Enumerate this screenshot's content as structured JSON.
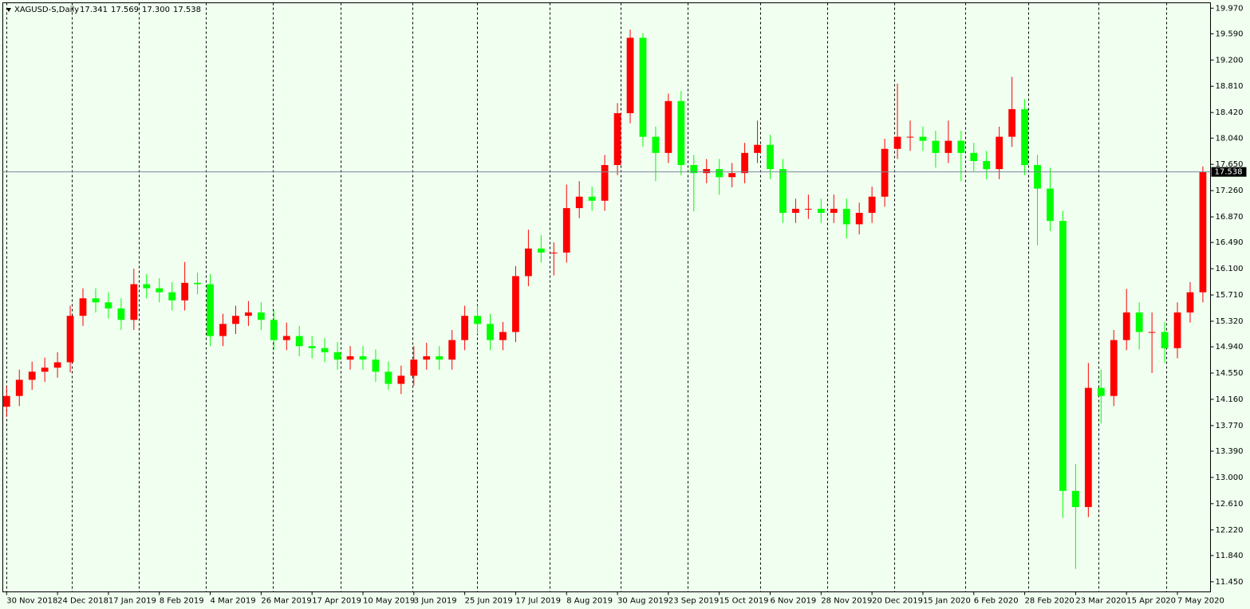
{
  "chart_data": {
    "type": "candlestick",
    "title": "XAGUSD-S,Daily",
    "header_ohlc": [
      17.341,
      17.569,
      {
        "value": 17.3,
        "label": "17.300"
      },
      17.538
    ],
    "last_price": 17.538,
    "bull_color": "#ff0000",
    "bear_color": "#00ff00",
    "price_line_color": "#778899",
    "xlim": [
      -0.3,
      94.6
    ],
    "xticks": [
      {
        "value": 0,
        "label": "30 Nov 2018"
      },
      {
        "value": 4,
        "label": "24 Dec 2018"
      },
      {
        "value": 8,
        "label": "17 Jan 2019"
      },
      {
        "value": 12,
        "label": "8 Feb 2019"
      },
      {
        "value": 16,
        "label": "4 Mar 2019"
      },
      {
        "value": 20,
        "label": "26 Mar 2019"
      },
      {
        "value": 24,
        "label": "17 Apr 2019"
      },
      {
        "value": 28,
        "label": "10 May 2019"
      },
      {
        "value": 32,
        "label": "3 Jun 2019"
      },
      {
        "value": 36,
        "label": "25 Jun 2019"
      },
      {
        "value": 40,
        "label": "17 Jul 2019"
      },
      {
        "value": 44,
        "label": "8 Aug 2019"
      },
      {
        "value": 48,
        "label": "30 Aug 2019"
      },
      {
        "value": 52,
        "label": "23 Sep 2019"
      },
      {
        "value": 56,
        "label": "15 Oct 2019"
      },
      {
        "value": 60,
        "label": "6 Nov 2019"
      },
      {
        "value": 64,
        "label": "28 Nov 2019"
      },
      {
        "value": 68,
        "label": "20 Dec 2019"
      },
      {
        "value": 72,
        "label": "15 Jan 2020"
      },
      {
        "value": 76,
        "label": "6 Feb 2020"
      },
      {
        "value": 80,
        "label": "28 Feb 2020"
      },
      {
        "value": 84,
        "label": "23 Mar 2020"
      },
      {
        "value": 88,
        "label": "15 Apr 2020"
      },
      {
        "value": 92,
        "label": "7 May 2020"
      }
    ],
    "ylim": [
      11.3,
      20.05
    ],
    "yticks": [
      {
        "value": 19.97,
        "label": "19.970"
      },
      {
        "value": 19.59,
        "label": "19.590"
      },
      {
        "value": 19.2,
        "label": "19.200"
      },
      {
        "value": 18.81,
        "label": "18.810"
      },
      {
        "value": 18.42,
        "label": "18.420"
      },
      {
        "value": 18.04,
        "label": "18.040"
      },
      {
        "value": 17.65,
        "label": "17.650"
      },
      {
        "value": 17.26,
        "label": "17.260"
      },
      {
        "value": 16.87,
        "label": "16.870"
      },
      {
        "value": 16.49,
        "label": "16.490"
      },
      {
        "value": 16.1,
        "label": "16.100"
      },
      {
        "value": 15.71,
        "label": "15.710"
      },
      {
        "value": 15.32,
        "label": "15.320"
      },
      {
        "value": 14.94,
        "label": "14.940"
      },
      {
        "value": 14.55,
        "label": "14.550"
      },
      {
        "value": 14.16,
        "label": "14.160"
      },
      {
        "value": 13.77,
        "label": "13.770"
      },
      {
        "value": 13.39,
        "label": "13.390"
      },
      {
        "value": 13.0,
        "label": "13.000"
      },
      {
        "value": 12.61,
        "label": "12.610"
      },
      {
        "value": 12.22,
        "label": "12.220"
      },
      {
        "value": 11.84,
        "label": "11.840"
      },
      {
        "value": 11.45,
        "label": "11.450"
      }
    ],
    "open": [
      14.05,
      14.21,
      14.45,
      14.57,
      14.63,
      14.71,
      15.4,
      15.66,
      15.6,
      15.51,
      15.34,
      15.87,
      15.81,
      15.75,
      15.63,
      15.89,
      15.87,
      15.1,
      15.28,
      15.4,
      15.45,
      15.34,
      15.04,
      15.1,
      14.95,
      14.92,
      14.86,
      14.75,
      14.8,
      14.75,
      14.57,
      14.39,
      14.51,
      14.75,
      14.8,
      14.75,
      15.04,
      15.4,
      15.28,
      15.04,
      15.16,
      15.99,
      16.4,
      16.34,
      16.34,
      17.0,
      17.17,
      17.11,
      17.64,
      18.41,
      19.53,
      18.06,
      17.82,
      18.59,
      17.64,
      17.52,
      17.58,
      17.46,
      17.52,
      17.82,
      17.94,
      17.58,
      16.93,
      16.99,
      16.99,
      16.93,
      16.99,
      16.76,
      16.93,
      17.17,
      17.88,
      18.06,
      18.06,
      18.0,
      17.82,
      18.0,
      17.82,
      17.7,
      17.58,
      18.06,
      18.47,
      17.64,
      17.29,
      16.81,
      12.8,
      12.56,
      14.33,
      14.21,
      15.04,
      15.45,
      15.16,
      15.16,
      14.92,
      15.45,
      15.75
    ],
    "high": [
      14.36,
      14.6,
      14.72,
      14.78,
      14.86,
      15.55,
      15.81,
      15.81,
      15.75,
      15.66,
      16.1,
      16.02,
      15.96,
      15.9,
      16.2,
      16.04,
      16.02,
      15.43,
      15.55,
      15.62,
      15.6,
      15.49,
      15.3,
      15.25,
      15.1,
      15.07,
      15.01,
      14.95,
      14.95,
      14.9,
      14.72,
      14.66,
      14.95,
      15.0,
      14.95,
      15.19,
      15.55,
      15.55,
      15.43,
      15.31,
      16.14,
      16.68,
      16.6,
      16.49,
      17.35,
      17.4,
      17.32,
      17.79,
      18.56,
      19.65,
      19.6,
      18.21,
      18.7,
      18.74,
      17.79,
      17.73,
      17.73,
      17.67,
      17.97,
      18.3,
      18.09,
      17.73,
      17.14,
      17.2,
      17.14,
      17.2,
      17.14,
      17.08,
      17.32,
      18.03,
      18.85,
      18.3,
      18.21,
      18.15,
      18.3,
      18.15,
      17.97,
      17.85,
      18.21,
      18.95,
      18.62,
      17.79,
      17.6,
      16.96,
      13.2,
      14.7,
      14.6,
      15.19,
      15.8,
      15.6,
      15.45,
      15.31,
      15.6,
      15.9,
      17.62
    ],
    "low": [
      13.9,
      14.06,
      14.3,
      14.42,
      14.48,
      14.56,
      15.25,
      15.45,
      15.36,
      15.19,
      15.19,
      15.66,
      15.6,
      15.48,
      15.48,
      15.72,
      14.95,
      14.95,
      15.13,
      15.25,
      15.19,
      14.89,
      14.89,
      14.8,
      14.77,
      14.71,
      14.6,
      14.6,
      14.6,
      14.42,
      14.3,
      14.24,
      14.36,
      14.6,
      14.6,
      14.6,
      14.89,
      15.13,
      14.89,
      14.89,
      15.01,
      15.84,
      16.19,
      16.0,
      16.19,
      16.85,
      16.96,
      16.96,
      17.49,
      18.26,
      17.91,
      17.4,
      17.67,
      17.49,
      16.95,
      17.37,
      17.2,
      17.31,
      17.37,
      17.67,
      17.43,
      16.78,
      16.78,
      16.84,
      16.78,
      16.78,
      16.55,
      16.61,
      16.78,
      17.02,
      17.73,
      17.85,
      17.85,
      17.6,
      17.67,
      17.4,
      17.55,
      17.43,
      17.43,
      17.91,
      17.49,
      16.45,
      16.66,
      12.4,
      11.64,
      12.41,
      13.8,
      14.06,
      14.89,
      14.9,
      14.55,
      14.7,
      14.77,
      15.3,
      15.6
    ],
    "close": [
      14.21,
      14.45,
      14.57,
      14.63,
      14.71,
      15.4,
      15.66,
      15.6,
      15.51,
      15.34,
      15.87,
      15.81,
      15.75,
      15.63,
      15.89,
      15.87,
      15.1,
      15.28,
      15.4,
      15.45,
      15.34,
      15.04,
      15.1,
      14.95,
      14.92,
      14.86,
      14.75,
      14.8,
      14.75,
      14.57,
      14.39,
      14.51,
      14.75,
      14.8,
      14.75,
      15.04,
      15.4,
      15.28,
      15.04,
      15.16,
      15.99,
      16.4,
      16.34,
      16.34,
      17.0,
      17.17,
      17.11,
      17.64,
      18.41,
      19.53,
      18.06,
      17.82,
      18.59,
      17.64,
      17.52,
      17.58,
      17.46,
      17.52,
      17.82,
      17.94,
      17.58,
      16.93,
      16.99,
      16.99,
      16.93,
      16.99,
      16.76,
      16.93,
      17.17,
      17.88,
      18.06,
      18.06,
      18.0,
      17.82,
      18.0,
      17.82,
      17.7,
      17.58,
      18.06,
      18.47,
      17.64,
      17.29,
      16.81,
      12.8,
      12.56,
      14.33,
      14.21,
      15.04,
      15.45,
      15.16,
      15.16,
      14.92,
      15.45,
      15.75,
      17.538
    ]
  }
}
